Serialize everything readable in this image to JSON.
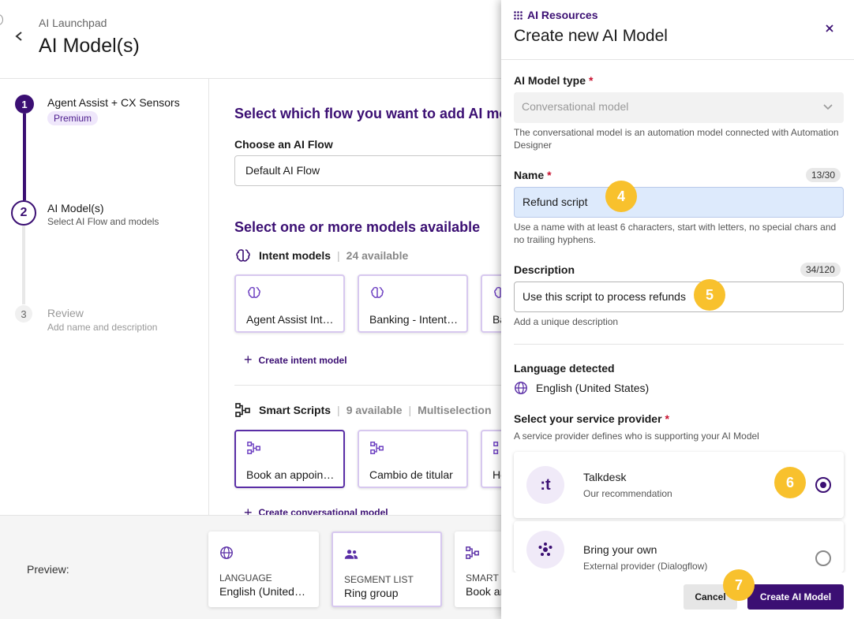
{
  "header": {
    "breadcrumb": "AI Launchpad",
    "title": "AI Model(s)"
  },
  "stepper": {
    "steps": [
      {
        "number": "1",
        "title": "Agent Assist + CX Sensors",
        "badge": "Premium"
      },
      {
        "number": "2",
        "title": "AI Model(s)",
        "subtitle": "Select AI Flow and models"
      },
      {
        "number": "3",
        "title": "Review",
        "subtitle": "Add name and description"
      }
    ]
  },
  "main": {
    "flow_heading": "Select which flow you want to add AI models",
    "flow_label": "Choose an AI Flow",
    "flow_value": "Default AI Flow",
    "models_heading": "Select one or more models available",
    "intent": {
      "name": "Intent models",
      "count": "24 available",
      "cards": [
        "Agent Assist Intent",
        "Banking - Intent model",
        "Ba"
      ],
      "create": "Create intent model"
    },
    "scripts": {
      "name": "Smart Scripts",
      "count": "9 available",
      "mode": "Multiselection",
      "cards": [
        "Book an appointment",
        "Cambio de titular",
        "He"
      ],
      "create": "Create conversational model"
    }
  },
  "preview": {
    "label": "Preview:",
    "cards": [
      {
        "category": "LANGUAGE",
        "value": "English (United States)"
      },
      {
        "category": "SEGMENT LIST",
        "value": "Ring group"
      },
      {
        "category": "SMART SCRIPTS",
        "value": "Book an appointment"
      }
    ]
  },
  "modal": {
    "resource_link": "AI Resources",
    "title": "Create new AI Model",
    "model_type": {
      "label": "AI Model type",
      "value": "Conversational model",
      "help": "The conversational model is an automation model connected with Automation Designer"
    },
    "name": {
      "label": "Name",
      "counter": "13/30",
      "value": "Refund script",
      "help": "Use a name with at least 6 characters, start with letters, no special chars and no trailing hyphens."
    },
    "description": {
      "label": "Description",
      "counter": "34/120",
      "value": "Use this script to process refunds",
      "help": "Add a unique description"
    },
    "language": {
      "label": "Language detected",
      "value": "English (United States)"
    },
    "provider": {
      "label": "Select your service provider",
      "help": "A service provider defines who is supporting your AI Model",
      "options": [
        {
          "name": "Talkdesk",
          "sub": "Our recommendation",
          "logo": ":t",
          "selected": true
        },
        {
          "name": "Bring your own",
          "sub": "External provider (Dialogflow)",
          "logo": "dialogflow-icon",
          "selected": false
        }
      ]
    },
    "cancel_label": "Cancel",
    "create_label": "Create AI Model"
  },
  "callouts": [
    "4",
    "5",
    "6",
    "7"
  ],
  "colors": {
    "brand": "#3b0f73",
    "callout": "#f8c12d",
    "name_field": "#ddeafc"
  }
}
